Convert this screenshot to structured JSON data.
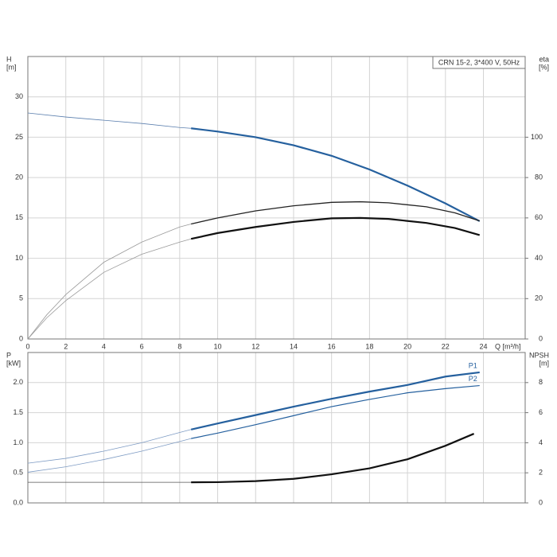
{
  "chart_data": [
    {
      "type": "line",
      "title": "CRN 15-2, 3*400 V, 50Hz",
      "y_label": [
        "H",
        "[m]"
      ],
      "y2_label": [
        "eta",
        "[%]"
      ],
      "x_label": "Q [m³/h]",
      "xlim": [
        0,
        26.2
      ],
      "xticks": [
        0,
        2,
        4,
        6,
        8,
        10,
        12,
        14,
        16,
        18,
        20,
        22,
        24
      ],
      "x_tick_labels": true,
      "ylim": [
        0,
        35
      ],
      "yticks": [
        0,
        5,
        10,
        15,
        20,
        25,
        30
      ],
      "y2lim": [
        0,
        140
      ],
      "y2ticks": [
        0,
        20,
        40,
        60,
        80,
        100
      ],
      "grid": true,
      "series": [
        {
          "color": "#5b7fae",
          "line_width": 0.8,
          "x": [
            0,
            2,
            4,
            6,
            8,
            8.6
          ],
          "values": [
            28.0,
            27.5,
            27.1,
            26.7,
            26.2,
            26.1
          ]
        },
        {
          "color": "#25609e",
          "line_width": 2.2,
          "x": [
            8.6,
            10,
            12,
            14,
            16,
            18,
            20,
            22,
            23.8
          ],
          "values": [
            26.1,
            25.7,
            25.0,
            24.0,
            22.7,
            21.0,
            19.0,
            16.8,
            14.6
          ]
        },
        {
          "color": "#9a9a9a",
          "line_width": 0.8,
          "axis": "y2",
          "x": [
            0,
            1,
            2,
            4,
            6,
            8,
            8.6
          ],
          "values": [
            0,
            12,
            22,
            38,
            48,
            55.5,
            57
          ]
        },
        {
          "color": "#222222",
          "line_width": 1.3,
          "axis": "y2",
          "x": [
            8.6,
            10,
            12,
            14,
            16,
            17.5,
            19,
            21,
            22.5,
            23.8
          ],
          "values": [
            57,
            60,
            63.5,
            66,
            67.7,
            68,
            67.5,
            65.5,
            62.5,
            58.5
          ]
        },
        {
          "color": "#9a9a9a",
          "line_width": 0.8,
          "axis": "y2",
          "x": [
            0,
            1,
            2,
            4,
            6,
            8,
            8.6
          ],
          "values": [
            0,
            10.5,
            19,
            33,
            42,
            48,
            49.6
          ]
        },
        {
          "color": "#111111",
          "line_width": 2.2,
          "axis": "y2",
          "x": [
            8.6,
            10,
            12,
            14,
            16,
            17.5,
            19,
            21,
            22.5,
            23.8
          ],
          "values": [
            49.6,
            52.5,
            55.5,
            58,
            59.8,
            60,
            59.5,
            57.5,
            55,
            51.5
          ]
        }
      ]
    },
    {
      "type": "line",
      "y_label": [
        "P",
        "[kW]"
      ],
      "y2_label": [
        "NPSH",
        "[m]"
      ],
      "xlim": [
        0,
        26.2
      ],
      "xticks": [
        0,
        2,
        4,
        6,
        8,
        10,
        12,
        14,
        16,
        18,
        20,
        22,
        24
      ],
      "x_tick_labels": false,
      "ylim": [
        0,
        2.5
      ],
      "yticks": [
        {
          "value": 0,
          "label": "0.0"
        },
        {
          "value": 0.5,
          "label": "0.5"
        },
        {
          "value": 1,
          "label": "1.0"
        },
        {
          "value": 1.5,
          "label": "1.5"
        },
        {
          "value": 2,
          "label": "2.0"
        }
      ],
      "y2lim": [
        0,
        10
      ],
      "y2ticks": [
        0,
        2,
        4,
        6,
        8
      ],
      "grid": true,
      "series": [
        {
          "color": "#7f9cc4",
          "line_width": 0.8,
          "x": [
            0,
            2,
            4,
            6,
            8,
            8.6
          ],
          "values": [
            0.66,
            0.74,
            0.86,
            1.0,
            1.17,
            1.22
          ]
        },
        {
          "name": "P1",
          "color": "#25609e",
          "line_width": 2.2,
          "x": [
            8.6,
            10,
            12,
            14,
            16,
            18,
            20,
            22,
            23.8
          ],
          "values": [
            1.22,
            1.32,
            1.46,
            1.6,
            1.73,
            1.85,
            1.96,
            2.1,
            2.17
          ]
        },
        {
          "color": "#7f9cc4",
          "line_width": 0.8,
          "x": [
            0,
            2,
            4,
            6,
            8,
            8.6
          ],
          "values": [
            0.51,
            0.6,
            0.72,
            0.86,
            1.02,
            1.07
          ]
        },
        {
          "name": "P2",
          "color": "#25609e",
          "line_width": 1.2,
          "x": [
            8.6,
            10,
            12,
            14,
            16,
            18,
            20,
            22,
            23.8
          ],
          "values": [
            1.07,
            1.16,
            1.3,
            1.45,
            1.6,
            1.72,
            1.83,
            1.9,
            1.95
          ]
        },
        {
          "color": "#555555",
          "line_width": 0.8,
          "axis": "y2",
          "x": [
            0,
            4,
            8.6
          ],
          "values": [
            1.37,
            1.37,
            1.37
          ]
        },
        {
          "color": "#111111",
          "line_width": 2.2,
          "axis": "y2",
          "x": [
            8.6,
            10,
            12,
            14,
            16,
            18,
            20,
            22,
            23.5
          ],
          "values": [
            1.37,
            1.38,
            1.45,
            1.6,
            1.9,
            2.3,
            2.9,
            3.8,
            4.6
          ]
        }
      ]
    }
  ]
}
